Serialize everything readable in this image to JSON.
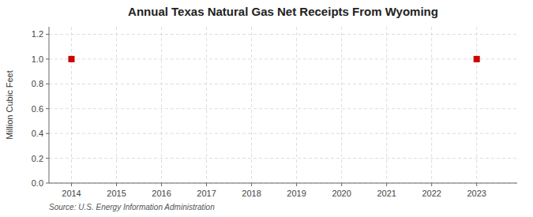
{
  "chart_data": {
    "type": "scatter",
    "title": "Annual Texas Natural Gas Net Receipts From Wyoming",
    "ylabel": "Million Cubic Feet",
    "source": "Source: U.S. Energy Information Administration",
    "x": [
      2014,
      2023
    ],
    "values": [
      1.0,
      1.0
    ],
    "color": "#cc0000",
    "marker": "square",
    "xlim": [
      2013.5,
      2023.9
    ],
    "ylim": [
      0.0,
      1.26
    ],
    "xticks": [
      2014,
      2015,
      2016,
      2017,
      2018,
      2019,
      2020,
      2021,
      2022,
      2023
    ],
    "yticks": [
      {
        "value": 0.0,
        "label": "0.0"
      },
      0.2,
      0.4,
      0.6,
      0.8,
      {
        "value": 1.0,
        "label": "1.0"
      },
      1.2
    ],
    "grid": true
  }
}
